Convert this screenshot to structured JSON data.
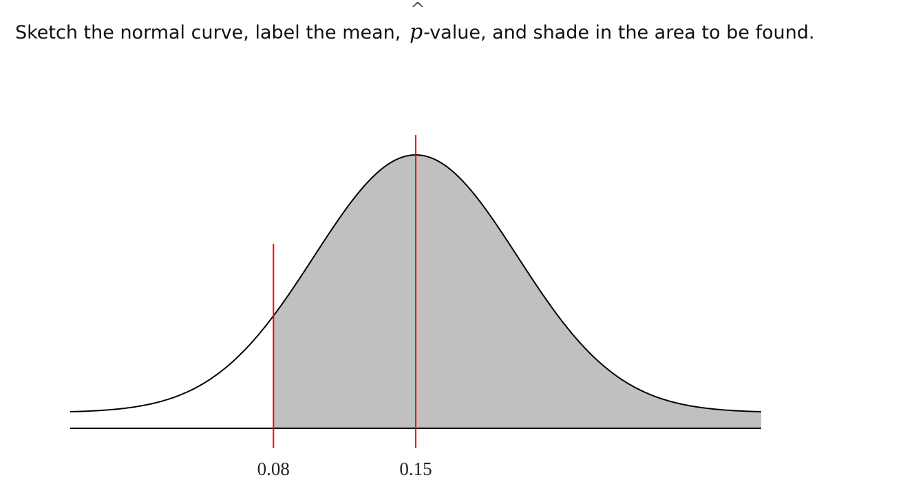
{
  "prompt": {
    "before": "Sketch the normal curve, label the mean,",
    "symbol": "p",
    "symbol_accent": "^",
    "after": "-value, and shade in the area to be found."
  },
  "chart_data": {
    "type": "area",
    "distribution": "normal",
    "mean": 0.15,
    "std": 0.05,
    "x_range": [
      -0.02,
      0.32
    ],
    "markers": [
      {
        "value": 0.08,
        "label": "0.08"
      },
      {
        "value": 0.15,
        "label": "0.15"
      }
    ],
    "shaded_region": {
      "from": 0.08,
      "to": 0.32
    },
    "colors": {
      "curve": "#000000",
      "axis": "#000000",
      "marker": "#ff0000",
      "shade": "#c0c0c0"
    },
    "grid": false
  }
}
